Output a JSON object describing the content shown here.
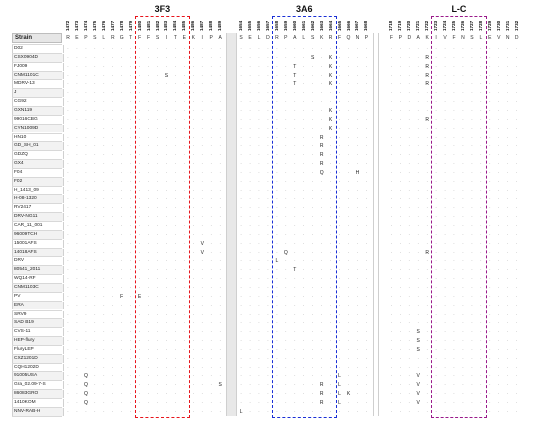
{
  "strain_header": "Strain",
  "positions": [
    "1472",
    "1473",
    "1474",
    "1475",
    "1476",
    "1477",
    "1478",
    "1479",
    "1480",
    "1481",
    "1482",
    "1483",
    "1484",
    "1485",
    "1486",
    "1487",
    "1488",
    "1489",
    "1654",
    "1655",
    "1656",
    "1657",
    "1658",
    "1659",
    "1660",
    "1661",
    "1662",
    "1663",
    "1664",
    "1665",
    "1666",
    "1667",
    "1668",
    "1718",
    "1719",
    "1720",
    "1721",
    "1722",
    "1723",
    "1724",
    "1725",
    "1726",
    "1727",
    "1728",
    "1729",
    "1730",
    "1731",
    "1732"
  ],
  "reference": [
    "R",
    "E",
    "P",
    "S",
    "L",
    "R",
    "G",
    "T",
    "F",
    "F",
    "S",
    "I",
    "T",
    "E",
    "K",
    "I",
    "P",
    "A",
    "S",
    "E",
    "L",
    "D",
    "R",
    "P",
    "A",
    "L",
    "S",
    "K",
    "R",
    "F",
    "Q",
    "N",
    "P",
    "F",
    "P",
    "D",
    "A",
    "K",
    "I",
    "V",
    "F",
    "N",
    "S",
    "L",
    "E",
    "V",
    "N",
    "D"
  ],
  "strains": [
    "D02",
    "CSX0904D",
    "FJ009",
    "CNM1101C",
    "MDRV-13",
    "J",
    "CG92",
    "GXN119",
    "99016CBG",
    "CYN1009D",
    "HN10",
    "GD_SH_01",
    "GDZQ",
    "GX4",
    "F04",
    "F02",
    "H_1413_09",
    "H-08-1320",
    "RV2417",
    "DRV-NG11",
    "CAR_11_001",
    "96009TCH",
    "15001AFS",
    "14018AFS",
    "DRV",
    "80541_2011",
    "WQ14-RF",
    "CNM1103C",
    "PV",
    "ERA",
    "SRV9",
    "SAD B19",
    "CVS-11",
    "HEP-flury",
    "FluryLEP",
    "CXZ1201D",
    "CQH1202D",
    "91005USA",
    "Gra_02.09-7-S",
    "86083GRO",
    "1410KOM",
    "NNV-RAB-H"
  ],
  "mutations": [
    {
      "row": 1,
      "col": 26,
      "v": "S"
    },
    {
      "row": 1,
      "col": 28,
      "v": "K"
    },
    {
      "row": 1,
      "col": 37,
      "v": "R"
    },
    {
      "row": 2,
      "col": 24,
      "v": "T"
    },
    {
      "row": 2,
      "col": 28,
      "v": "K"
    },
    {
      "row": 2,
      "col": 37,
      "v": "R"
    },
    {
      "row": 3,
      "col": 11,
      "v": "S"
    },
    {
      "row": 3,
      "col": 24,
      "v": "T"
    },
    {
      "row": 3,
      "col": 28,
      "v": "K"
    },
    {
      "row": 3,
      "col": 37,
      "v": "R"
    },
    {
      "row": 4,
      "col": 24,
      "v": "T"
    },
    {
      "row": 4,
      "col": 28,
      "v": "K"
    },
    {
      "row": 4,
      "col": 37,
      "v": "R"
    },
    {
      "row": 7,
      "col": 28,
      "v": "K"
    },
    {
      "row": 8,
      "col": 28,
      "v": "K"
    },
    {
      "row": 8,
      "col": 37,
      "v": "R"
    },
    {
      "row": 9,
      "col": 28,
      "v": "K"
    },
    {
      "row": 10,
      "col": 27,
      "v": "R"
    },
    {
      "row": 11,
      "col": 27,
      "v": "R"
    },
    {
      "row": 12,
      "col": 27,
      "v": "R"
    },
    {
      "row": 13,
      "col": 27,
      "v": "R"
    },
    {
      "row": 14,
      "col": 27,
      "v": "Q"
    },
    {
      "row": 14,
      "col": 31,
      "v": "H"
    },
    {
      "row": 22,
      "col": 15,
      "v": "V"
    },
    {
      "row": 23,
      "col": 15,
      "v": "V"
    },
    {
      "row": 23,
      "col": 23,
      "v": "Q"
    },
    {
      "row": 23,
      "col": 37,
      "v": "R"
    },
    {
      "row": 24,
      "col": 22,
      "v": "L"
    },
    {
      "row": 25,
      "col": 24,
      "v": "T"
    },
    {
      "row": 28,
      "col": 6,
      "v": "F"
    },
    {
      "row": 28,
      "col": 8,
      "v": "E"
    },
    {
      "row": 32,
      "col": 36,
      "v": "S"
    },
    {
      "row": 33,
      "col": 36,
      "v": "S"
    },
    {
      "row": 34,
      "col": 36,
      "v": "S"
    },
    {
      "row": 37,
      "col": 2,
      "v": "Q"
    },
    {
      "row": 37,
      "col": 29,
      "v": "L"
    },
    {
      "row": 37,
      "col": 36,
      "v": "V"
    },
    {
      "row": 38,
      "col": 2,
      "v": "Q"
    },
    {
      "row": 38,
      "col": 17,
      "v": "S"
    },
    {
      "row": 38,
      "col": 27,
      "v": "R"
    },
    {
      "row": 38,
      "col": 29,
      "v": "L"
    },
    {
      "row": 38,
      "col": 36,
      "v": "V"
    },
    {
      "row": 39,
      "col": 2,
      "v": "Q"
    },
    {
      "row": 39,
      "col": 27,
      "v": "R"
    },
    {
      "row": 39,
      "col": 29,
      "v": "L"
    },
    {
      "row": 39,
      "col": 30,
      "v": "K"
    },
    {
      "row": 39,
      "col": 36,
      "v": "V"
    },
    {
      "row": 40,
      "col": 2,
      "v": "Q"
    },
    {
      "row": 40,
      "col": 27,
      "v": "R"
    },
    {
      "row": 40,
      "col": 29,
      "v": "L"
    },
    {
      "row": 40,
      "col": 36,
      "v": "V"
    },
    {
      "row": 41,
      "col": 18,
      "v": "L"
    }
  ],
  "regions": [
    {
      "label": "3F3",
      "color": "#e8141c",
      "from": 8,
      "to": 13
    },
    {
      "label": "3A6",
      "color": "#1a2fd6",
      "from": 22,
      "to": 28
    },
    {
      "label": "L-C",
      "color": "#9a1a8a",
      "from": 38,
      "to": 43
    }
  ],
  "colors": {
    "header_bg": "#e6e6e6",
    "row_bg_alt": "#f2f2f2",
    "gap": "#e8e8e8"
  }
}
